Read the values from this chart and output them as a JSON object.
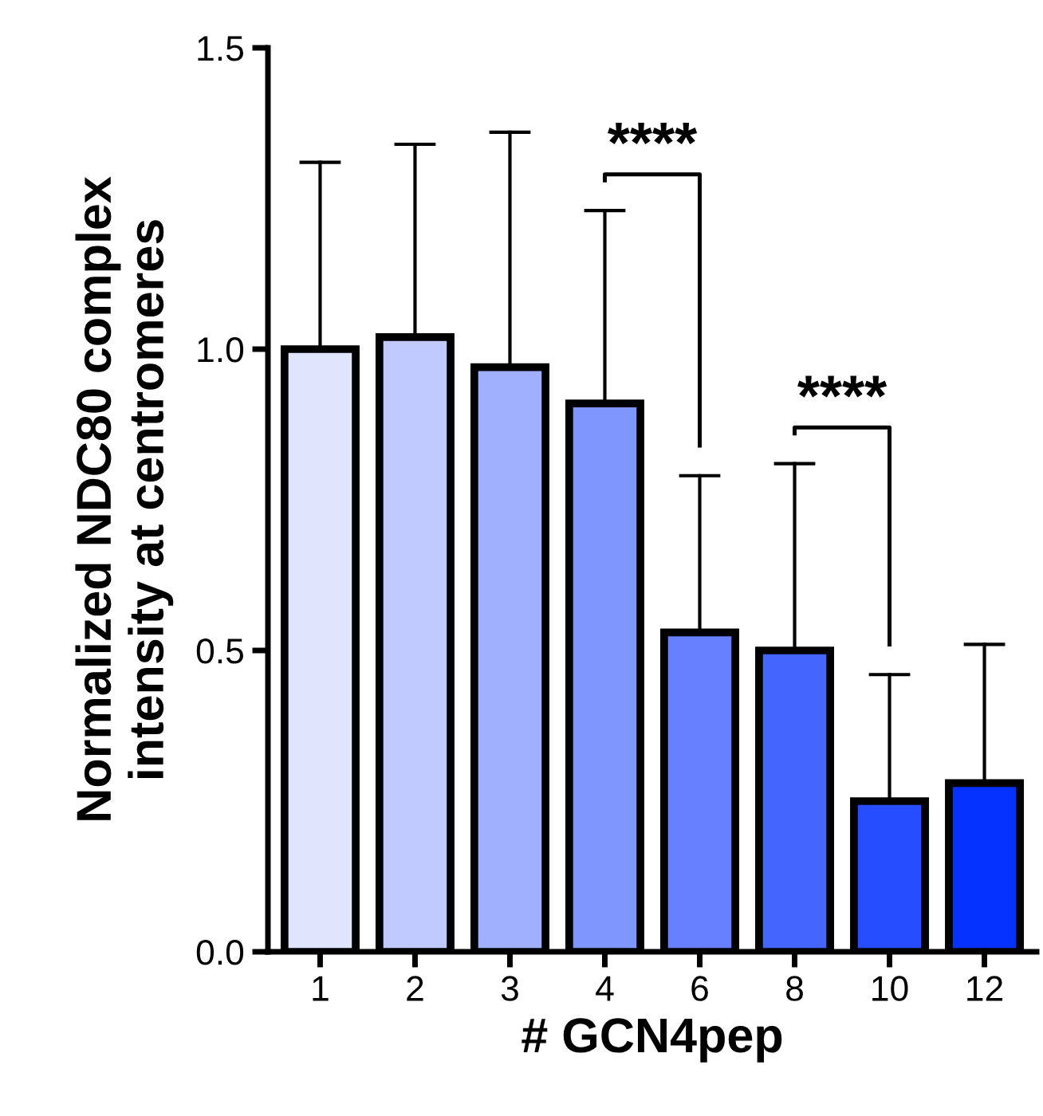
{
  "chart_data": {
    "type": "bar",
    "xlabel": "# GCN4pep",
    "ylabel": "Normalized NDC80 complex\nintensity at centromeres",
    "categories": [
      "1",
      "2",
      "3",
      "4",
      "6",
      "8",
      "10",
      "12"
    ],
    "values": [
      1.0,
      1.02,
      0.97,
      0.91,
      0.53,
      0.5,
      0.25,
      0.28
    ],
    "colors": [
      "#e0e4fc",
      "#c0caff",
      "#a0b0ff",
      "#8096ff",
      "#6680ff",
      "#4466ff",
      "#264dff",
      "#0532ff"
    ],
    "errors": [
      [
        1.0,
        1.31
      ],
      [
        1.02,
        1.34
      ],
      [
        0.97,
        1.36
      ],
      [
        0.91,
        1.23
      ],
      [
        0.53,
        0.79
      ],
      [
        0.5,
        0.81
      ],
      [
        0.25,
        0.46
      ],
      [
        0.28,
        0.51
      ]
    ],
    "ylim": [
      0,
      1.5
    ],
    "yticks": [
      {
        "value": 0,
        "label": "0.0"
      },
      0.5,
      {
        "value": 1,
        "label": "1.0"
      },
      1.5
    ],
    "grid": false,
    "legend": false,
    "annotations": [
      "****",
      "****"
    ]
  }
}
